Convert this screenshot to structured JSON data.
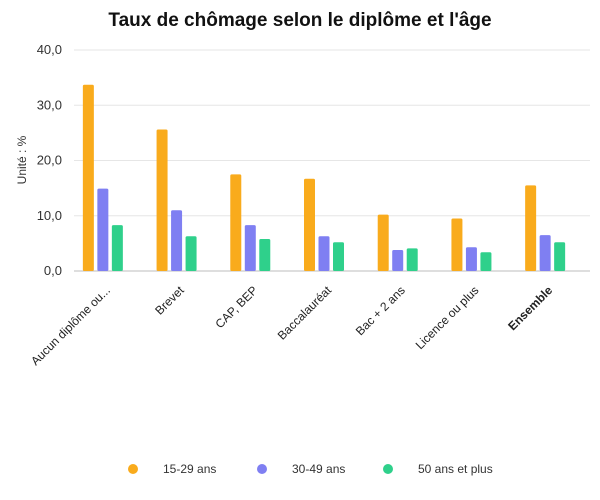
{
  "chart_data": {
    "type": "bar",
    "title": "Taux de chômage selon le diplôme et l'âge",
    "ylabel": "Unité : %",
    "xlabel": "",
    "ylim": [
      0,
      40
    ],
    "yticks": [
      "0,0",
      "10,0",
      "20,0",
      "30,0",
      "40,0"
    ],
    "ytick_values": [
      0,
      10,
      20,
      30,
      40
    ],
    "categories": [
      "Aucun diplôme ou...",
      "Brevet",
      "CAP, BEP",
      "Baccalauréat",
      "Bac + 2 ans",
      "Licence ou plus",
      "Ensemble"
    ],
    "bold_categories": [
      "Ensemble"
    ],
    "series": [
      {
        "name": "15-29 ans",
        "color": "#f9ab1c",
        "values": [
          33.7,
          25.6,
          17.5,
          16.7,
          10.2,
          9.5,
          15.5
        ]
      },
      {
        "name": "30-49 ans",
        "color": "#7f7ff2",
        "values": [
          14.9,
          11.0,
          8.3,
          6.3,
          3.8,
          4.3,
          6.5
        ]
      },
      {
        "name": "50 ans et plus",
        "color": "#2fd08b",
        "values": [
          8.3,
          6.3,
          5.8,
          5.2,
          4.1,
          3.4,
          5.2
        ]
      }
    ],
    "grid": true,
    "legend": "bottom"
  }
}
